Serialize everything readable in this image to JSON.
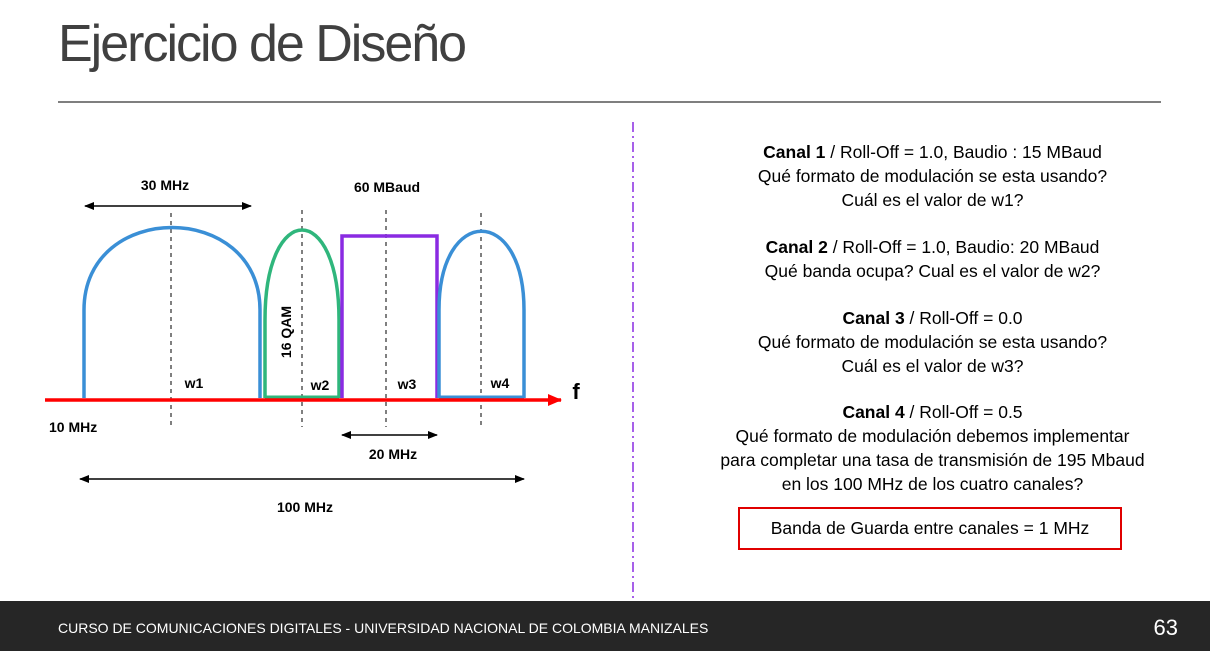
{
  "slide": {
    "title": "Ejercicio de Diseño",
    "page_number": "63",
    "footer": "CURSO DE COMUNICACIONES DIGITALES - UNIVERSIDAD NACIONAL DE COLOMBIA MANIZALES"
  },
  "diagram": {
    "top_left_width_label": "30 MHz",
    "baud_label": "60 MBaud",
    "modulation_label": "16 QAM",
    "w1": "w1",
    "w2": "w2",
    "w3": "w3",
    "w4": "w4",
    "axis_label": "f",
    "start_freq_label": "10 MHz",
    "channel3_width_label": "20 MHz",
    "total_width_label": "100 MHz",
    "colors": {
      "channel1": "#3a8fd6",
      "channel2": "#2fb67c",
      "channel3": "#8a2be2",
      "channel4": "#3a8fd6",
      "axis": "#ff0000",
      "separator": "#8a2be2"
    }
  },
  "questions": {
    "canal1": {
      "name": "Canal 1",
      "params": " / Roll-Off = 1.0, Baudio : 15 MBaud",
      "q1": "Qué formato de modulación se esta usando?",
      "q2": "Cuál es el valor de w1?"
    },
    "canal2": {
      "name": "Canal 2",
      "params": " / Roll-Off = 1.0, Baudio: 20 MBaud",
      "q1": "Qué banda ocupa? Cual es el valor de w2?"
    },
    "canal3": {
      "name": "Canal 3",
      "params": " / Roll-Off = 0.0",
      "q1": "Qué formato de modulación se esta usando?",
      "q2": "Cuál es el valor de w3?"
    },
    "canal4": {
      "name": "Canal 4",
      "params": " / Roll-Off = 0.5",
      "q1": "Qué formato de modulación debemos implementar",
      "q2": "para completar una tasa de transmisión de 195 Mbaud",
      "q3": "en los 100 MHz de los cuatro canales?"
    },
    "guard_band": "Banda de Guarda entre canales = 1 MHz"
  }
}
